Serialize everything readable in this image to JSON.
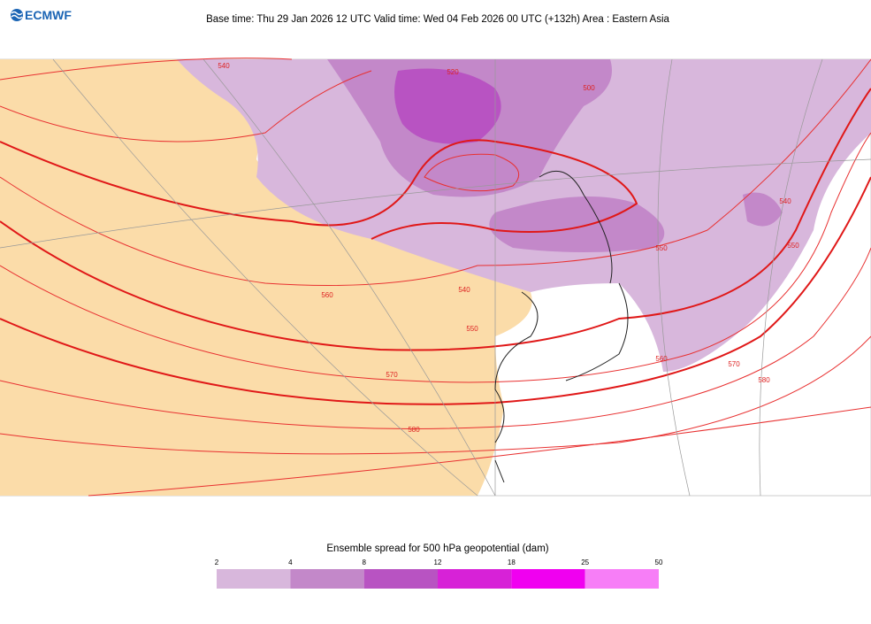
{
  "header": {
    "logo": "ECMWF",
    "title": "Base time: Thu 29 Jan 2026 12 UTC Valid time: Wed 04 Feb 2026 00 UTC (+132h) Area : Eastern Asia"
  },
  "map": {
    "contour_labels": [
      "540",
      "520",
      "500",
      "540",
      "540",
      "550",
      "560",
      "570",
      "580",
      "560",
      "570",
      "580",
      "550",
      "550"
    ]
  },
  "legend": {
    "title": "Ensemble spread for 500 hPa geopotential (dam)",
    "ticks": [
      2,
      4,
      8,
      12,
      18,
      25,
      50
    ],
    "colors": [
      "#d8b7dc",
      "#c388c9",
      "#b853c2",
      "#d722d7",
      "#f000f0",
      "#f77ef7"
    ]
  }
}
